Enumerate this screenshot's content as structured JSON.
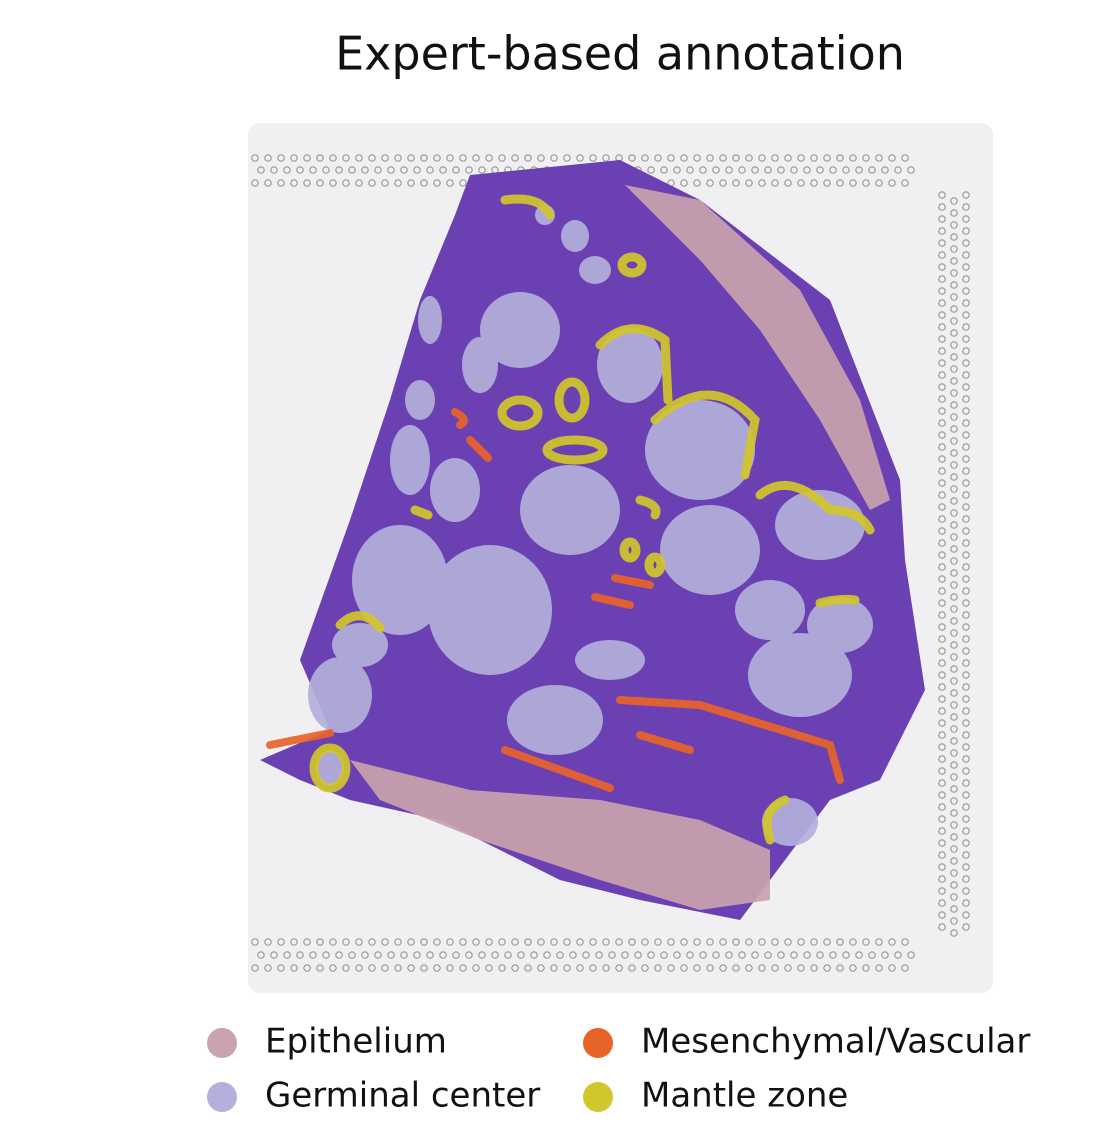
{
  "title": "Expert-based annotation",
  "legend": [
    {
      "label": "Epithelium",
      "color": "#c9a3ad"
    },
    {
      "label": "Germinal center",
      "color": "#b3b0dc"
    },
    {
      "label": "Mesenchymal/Vascular",
      "color": "#e8632a"
    },
    {
      "label": "Mantle zone",
      "color": "#d1c62c"
    }
  ]
}
